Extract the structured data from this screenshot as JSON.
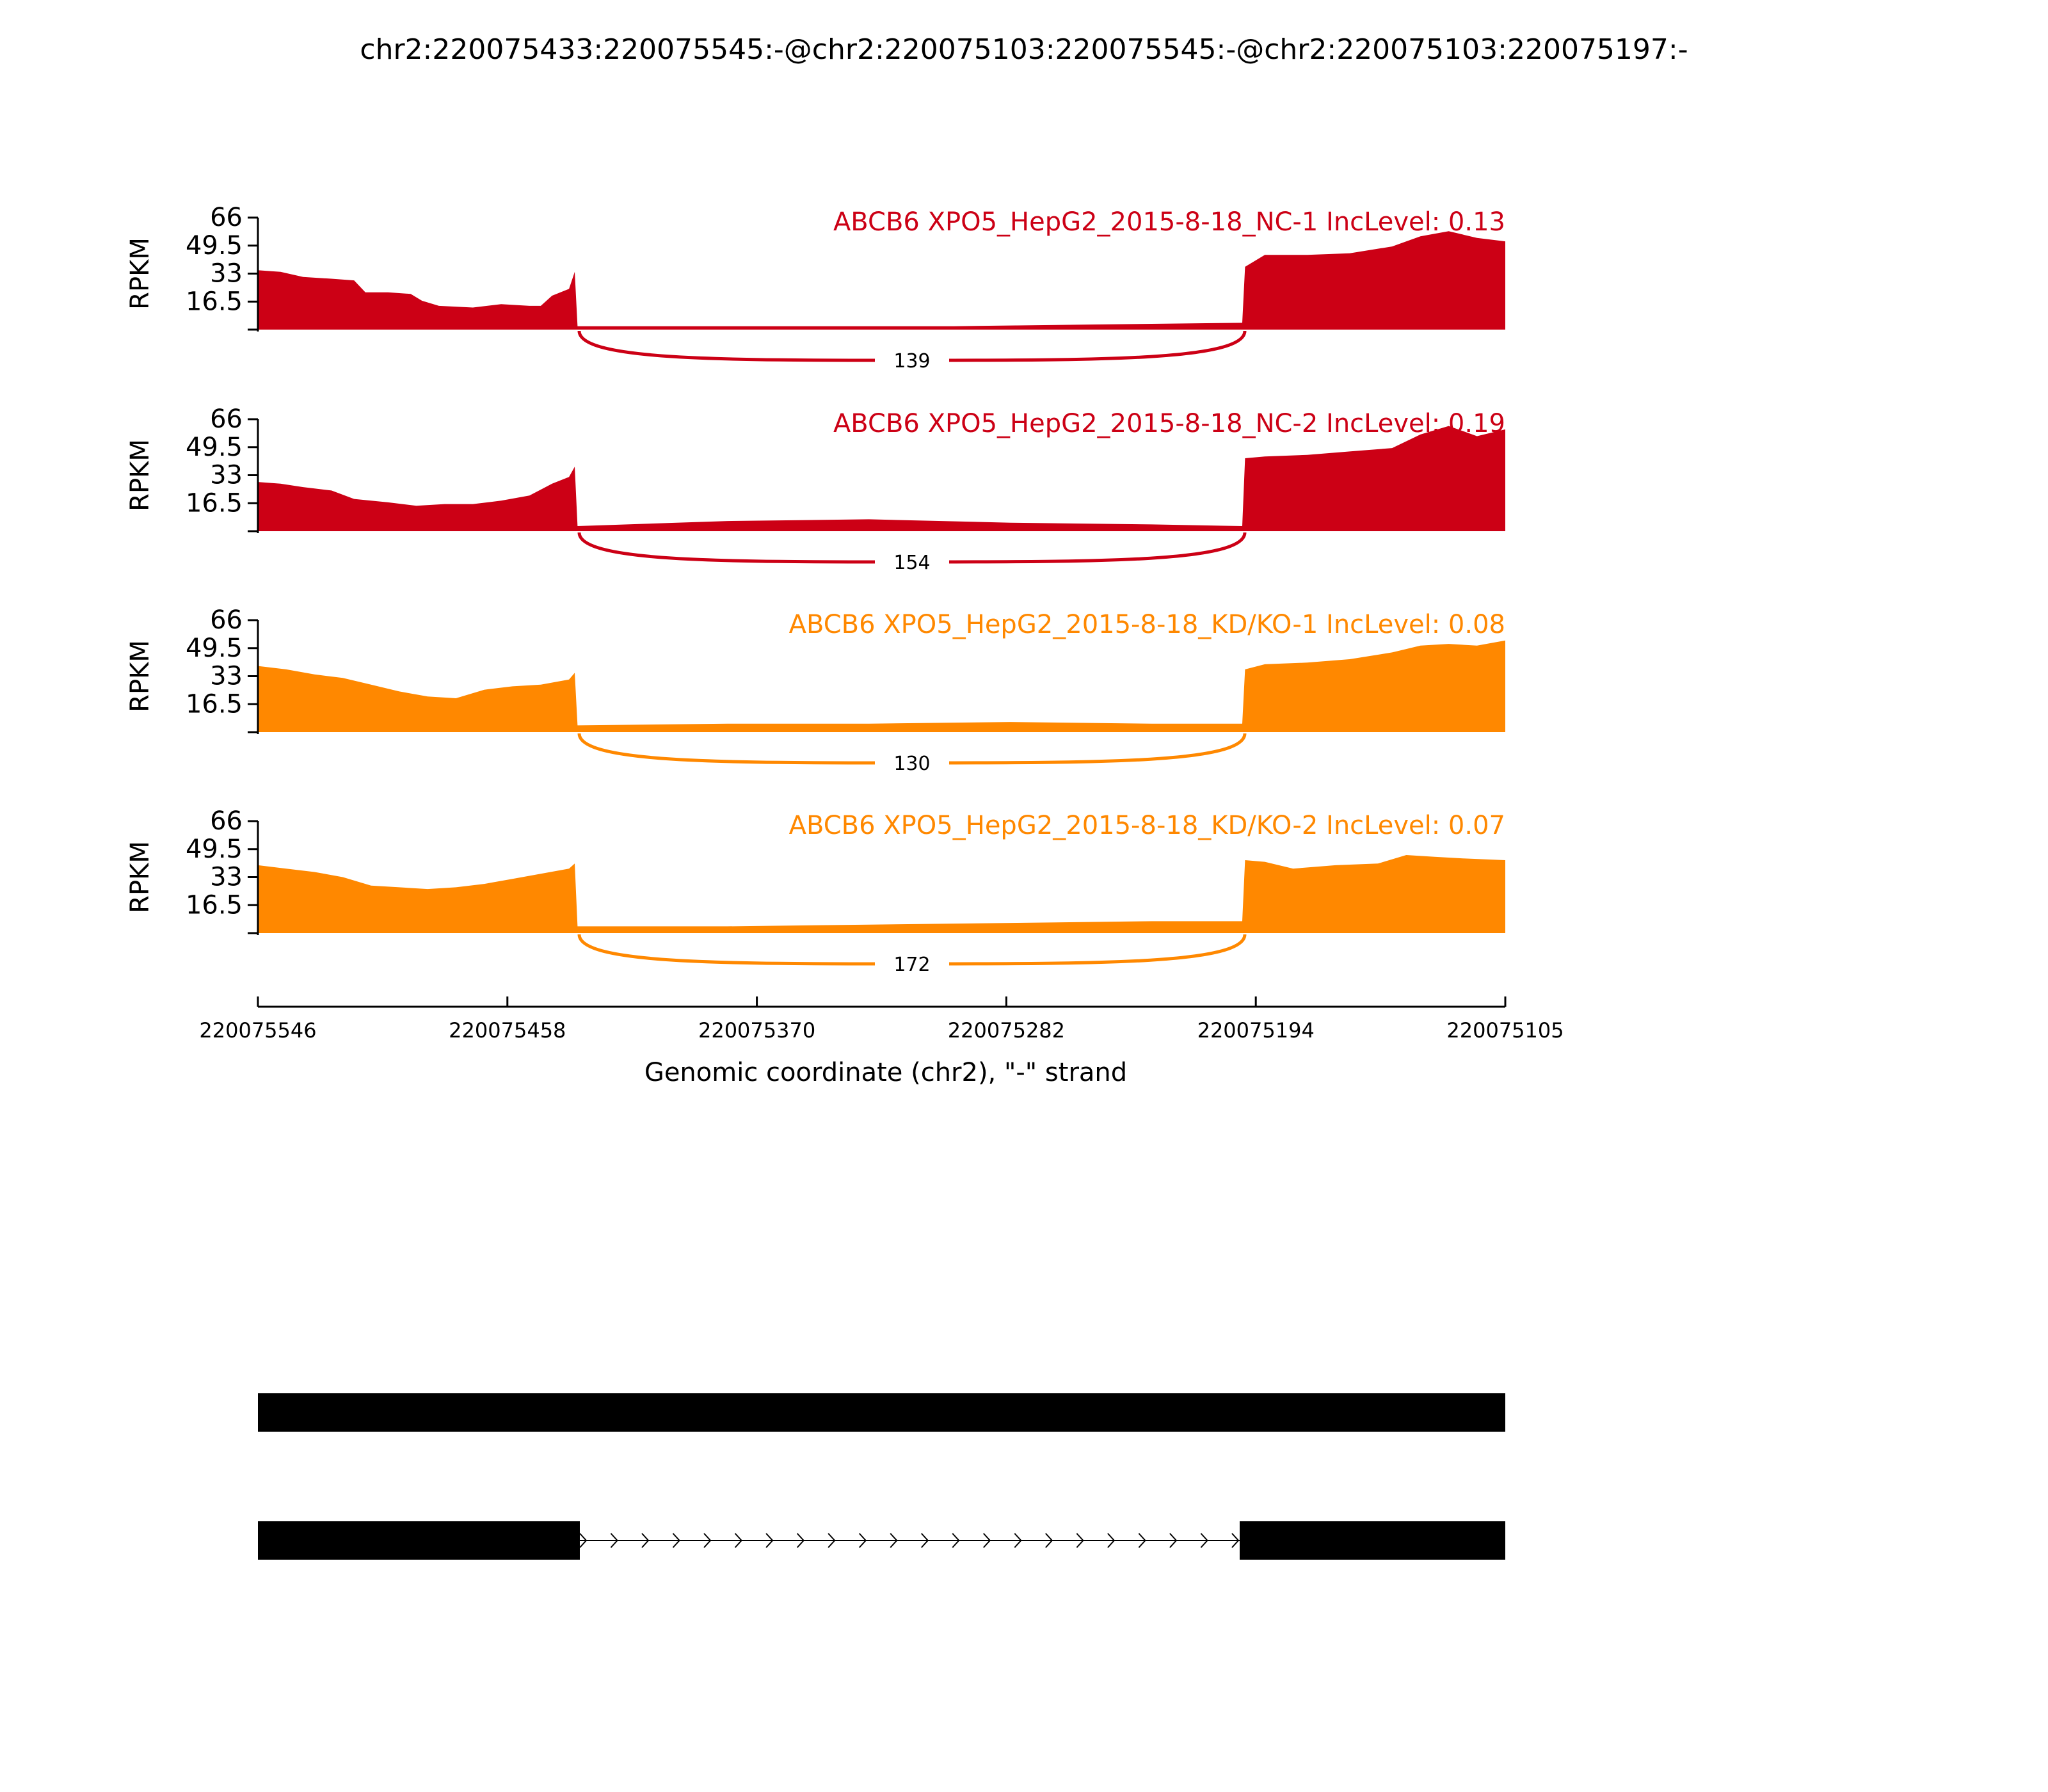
{
  "page_title": "chr2:220075433:220075545:-@chr2:220075103:220075545:-@chr2:220075103:220075197:-",
  "colors": {
    "nc": "#cc0015",
    "kd": "#ff8800",
    "axis": "#000000",
    "gene": "#000000"
  },
  "chart_data": {
    "type": "area",
    "title": "chr2:220075433:220075545:-@chr2:220075103:220075545:-@chr2:220075103:220075197:-",
    "xlabel": "Genomic coordinate (chr2), \"-\" strand",
    "ylabel": "RPKM",
    "ylim": [
      0,
      66
    ],
    "yticks": [
      "16.5",
      "33",
      "49.5",
      "66"
    ],
    "xlim": [
      220075546,
      220075105
    ],
    "xticks": [
      "220075546",
      "220075458",
      "220075370",
      "220075282",
      "220075194",
      "220075105"
    ],
    "exon_left": [
      220075546,
      220075434
    ],
    "exon_right": [
      220075198,
      220075105
    ],
    "tracks": [
      {
        "label": "ABCB6 XPO5_HepG2_2015-8-18_NC-1 IncLevel: 0.13",
        "color": "nc",
        "junction_count": "139",
        "profile": [
          [
            220075546,
            35
          ],
          [
            220075538,
            34
          ],
          [
            220075530,
            31
          ],
          [
            220075520,
            30
          ],
          [
            220075512,
            29
          ],
          [
            220075508,
            22
          ],
          [
            220075500,
            22
          ],
          [
            220075492,
            21
          ],
          [
            220075488,
            17
          ],
          [
            220075482,
            14
          ],
          [
            220075470,
            13
          ],
          [
            220075460,
            15
          ],
          [
            220075450,
            14
          ],
          [
            220075446,
            14
          ],
          [
            220075442,
            20
          ],
          [
            220075436,
            24
          ],
          [
            220075434,
            34
          ],
          [
            220075433,
            2
          ],
          [
            220075300,
            2
          ],
          [
            220075250,
            3
          ],
          [
            220075198,
            4
          ],
          [
            220075197,
            37
          ],
          [
            220075190,
            44
          ],
          [
            220075175,
            44
          ],
          [
            220075160,
            45
          ],
          [
            220075145,
            49
          ],
          [
            220075135,
            55
          ],
          [
            220075125,
            58
          ],
          [
            220075115,
            54
          ],
          [
            220075105,
            52
          ]
        ]
      },
      {
        "label": "ABCB6 XPO5_HepG2_2015-8-18_NC-2 IncLevel: 0.19",
        "color": "nc",
        "junction_count": "154",
        "profile": [
          [
            220075546,
            29
          ],
          [
            220075538,
            28
          ],
          [
            220075530,
            26
          ],
          [
            220075520,
            24
          ],
          [
            220075512,
            19
          ],
          [
            220075500,
            17
          ],
          [
            220075490,
            15
          ],
          [
            220075480,
            16
          ],
          [
            220075470,
            16
          ],
          [
            220075460,
            18
          ],
          [
            220075450,
            21
          ],
          [
            220075442,
            28
          ],
          [
            220075436,
            32
          ],
          [
            220075434,
            38
          ],
          [
            220075433,
            3
          ],
          [
            220075380,
            6
          ],
          [
            220075330,
            7
          ],
          [
            220075280,
            5
          ],
          [
            220075230,
            4
          ],
          [
            220075198,
            3
          ],
          [
            220075197,
            43
          ],
          [
            220075190,
            44
          ],
          [
            220075175,
            45
          ],
          [
            220075160,
            47
          ],
          [
            220075145,
            49
          ],
          [
            220075135,
            57
          ],
          [
            220075125,
            62
          ],
          [
            220075115,
            56
          ],
          [
            220075105,
            60
          ]
        ]
      },
      {
        "label": "ABCB6 XPO5_HepG2_2015-8-18_KD/KO-1 IncLevel: 0.08",
        "color": "kd",
        "junction_count": "130",
        "profile": [
          [
            220075546,
            39
          ],
          [
            220075536,
            37
          ],
          [
            220075526,
            34
          ],
          [
            220075516,
            32
          ],
          [
            220075506,
            28
          ],
          [
            220075496,
            24
          ],
          [
            220075486,
            21
          ],
          [
            220075476,
            20
          ],
          [
            220075466,
            25
          ],
          [
            220075456,
            27
          ],
          [
            220075446,
            28
          ],
          [
            220075436,
            31
          ],
          [
            220075434,
            35
          ],
          [
            220075433,
            4
          ],
          [
            220075380,
            5
          ],
          [
            220075330,
            5
          ],
          [
            220075280,
            6
          ],
          [
            220075230,
            5
          ],
          [
            220075198,
            5
          ],
          [
            220075197,
            37
          ],
          [
            220075190,
            40
          ],
          [
            220075175,
            41
          ],
          [
            220075160,
            43
          ],
          [
            220075145,
            47
          ],
          [
            220075135,
            51
          ],
          [
            220075125,
            52
          ],
          [
            220075115,
            51
          ],
          [
            220075105,
            54
          ]
        ]
      },
      {
        "label": "ABCB6 XPO5_HepG2_2015-8-18_KD/KO-2 IncLevel: 0.07",
        "color": "kd",
        "junction_count": "172",
        "profile": [
          [
            220075546,
            40
          ],
          [
            220075536,
            38
          ],
          [
            220075526,
            36
          ],
          [
            220075516,
            33
          ],
          [
            220075506,
            28
          ],
          [
            220075496,
            27
          ],
          [
            220075486,
            26
          ],
          [
            220075476,
            27
          ],
          [
            220075466,
            29
          ],
          [
            220075456,
            32
          ],
          [
            220075446,
            35
          ],
          [
            220075436,
            38
          ],
          [
            220075434,
            41
          ],
          [
            220075433,
            4
          ],
          [
            220075380,
            4
          ],
          [
            220075330,
            5
          ],
          [
            220075280,
            6
          ],
          [
            220075230,
            7
          ],
          [
            220075198,
            7
          ],
          [
            220075197,
            43
          ],
          [
            220075190,
            42
          ],
          [
            220075180,
            38
          ],
          [
            220075165,
            40
          ],
          [
            220075150,
            41
          ],
          [
            220075140,
            46
          ],
          [
            220075130,
            45
          ],
          [
            220075120,
            44
          ],
          [
            220075105,
            43
          ]
        ]
      }
    ]
  }
}
